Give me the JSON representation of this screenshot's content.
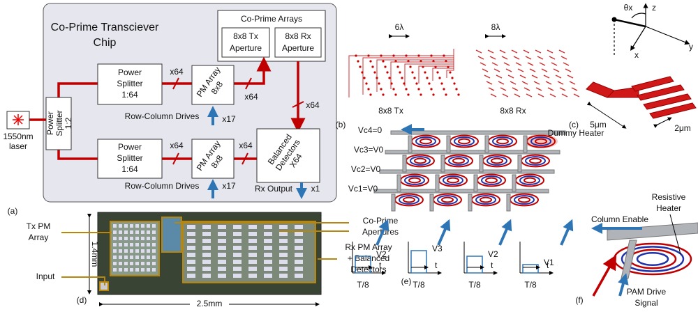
{
  "panel_a": {
    "label": "(a)",
    "title": [
      "Co-Prime Transciever",
      "Chip"
    ],
    "arrays_title": "Co-Prime Arrays",
    "tx_aperture": [
      "8x8 Tx",
      "Aperture"
    ],
    "rx_aperture": [
      "8x8 Rx",
      "Aperture"
    ],
    "laser": [
      "1550nm",
      "laser"
    ],
    "splitter_1_2": [
      "Power",
      "Splitter",
      "1:2"
    ],
    "splitter_top": [
      "Power",
      "Splitter",
      "1:64"
    ],
    "splitter_bottom": [
      "Power",
      "Splitter",
      "1:64"
    ],
    "pm_top": [
      "PM Array",
      "8x8"
    ],
    "pm_bottom": [
      "PM Array",
      "8x8"
    ],
    "detectors": [
      "Balanced",
      "Detectors",
      "X64"
    ],
    "fanouts": [
      "x64",
      "x64",
      "x64",
      "x64",
      "x64"
    ],
    "drives": [
      "Row-Column Drives",
      "Row-Column Drives"
    ],
    "drive_counts": [
      "x17",
      "x17"
    ],
    "rx_output": "Rx Output",
    "rx_output_count": "x1"
  },
  "panel_b": {
    "label": "(b)",
    "tx_pitch": "6λ",
    "rx_pitch": "8λ",
    "tx_name": "8x8 Tx",
    "rx_name": "8x8 Rx"
  },
  "panel_c": {
    "label": "(c)",
    "theta": "θx",
    "axes": [
      "z",
      "y",
      "x"
    ],
    "length": "5μm",
    "width": "2μm"
  },
  "panel_d": {
    "label": "(d)",
    "apertures": [
      "Co-Prime",
      "Apertures"
    ],
    "tx_pm": [
      "Tx PM",
      "Array"
    ],
    "rx_pm": [
      "Rx PM Array",
      "+ Balanced",
      "Detectors"
    ],
    "input": "Input",
    "height": "1.4mm",
    "width": "2.5mm"
  },
  "panel_e": {
    "label": "(e)",
    "rows": [
      "Vc4=0",
      "Vc3=V0",
      "Vc2=V0",
      "Vc1=V0"
    ],
    "dummy": "Dummy Heater",
    "pulses": [
      {
        "level": "V2",
        "axis": "t",
        "period": "T/8"
      },
      {
        "level": "V3",
        "axis": "t",
        "period": "T/8"
      },
      {
        "level": "V2",
        "axis": "t",
        "period": "T/8"
      },
      {
        "level": "V1",
        "axis": "t",
        "period": "T/8"
      }
    ]
  },
  "panel_f": {
    "label": "(f)",
    "heater": [
      "Resistive",
      "Heater"
    ],
    "enable": "Column Enable",
    "drive": [
      "PAM Drive",
      "Signal"
    ]
  }
}
